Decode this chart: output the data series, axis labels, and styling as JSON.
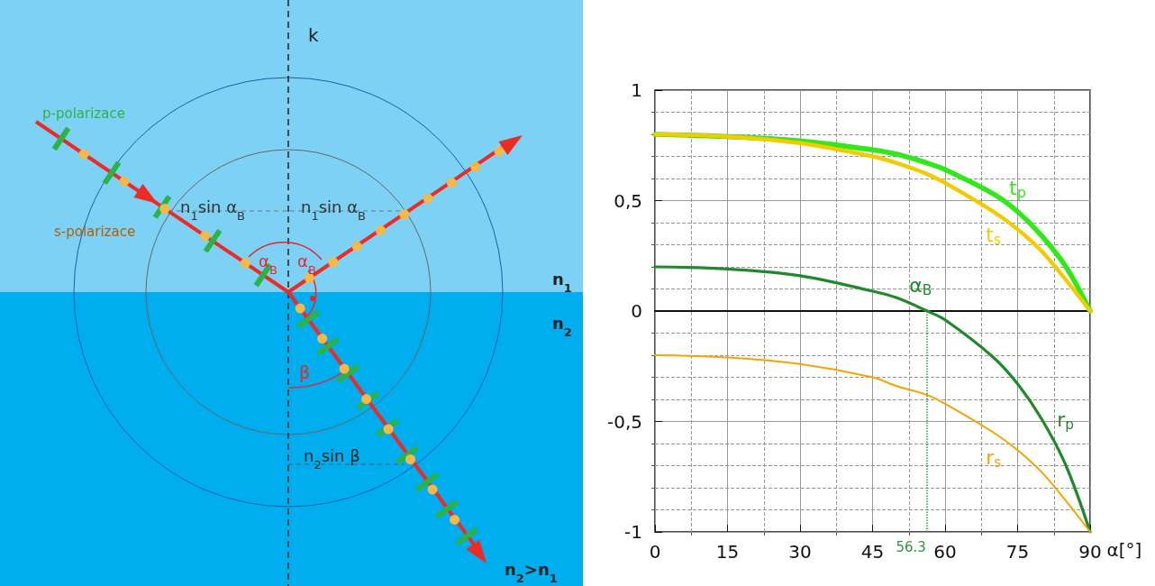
{
  "chart_data": [
    {
      "type": "other",
      "annotations": [
        "k",
        "p-polarizace",
        "s-polarizace",
        "n$_{1}$sin α$_{B}$",
        "n$_{1}$sin α$_{B}$",
        "α$_{B}$",
        "α$_{B}$",
        "β",
        "n$_{2}$sin β",
        "n$_{1}$",
        "n$_{2}$",
        "n$_{2}$>n$_{1}$"
      ]
    },
    {
      "type": "line",
      "xlabel": "α[°]",
      "x": [
        0,
        15,
        30,
        45,
        50,
        56.3,
        60,
        70,
        75,
        80,
        85,
        90
      ],
      "series": [
        {
          "name": "t$_{p}$",
          "color": "#33e81a",
          "values": [
            0.8,
            0.79,
            0.77,
            0.73,
            0.71,
            0.67,
            0.64,
            0.53,
            0.45,
            0.34,
            0.2,
            0
          ]
        },
        {
          "name": "t$_{s}$",
          "color": "#f2cc00",
          "values": [
            0.8,
            0.79,
            0.76,
            0.7,
            0.67,
            0.62,
            0.58,
            0.45,
            0.37,
            0.27,
            0.14,
            0
          ]
        },
        {
          "name": "r$_{p}$",
          "color": "#1e8a2a",
          "values": [
            0.2,
            0.19,
            0.16,
            0.09,
            0.06,
            0,
            -0.04,
            -0.21,
            -0.33,
            -0.49,
            -0.7,
            -1
          ]
        },
        {
          "name": "r$_{s}$",
          "color": "#f5a400",
          "values": [
            -0.2,
            -0.21,
            -0.24,
            -0.3,
            -0.34,
            -0.38,
            -0.42,
            -0.55,
            -0.63,
            -0.73,
            -0.86,
            -1
          ]
        }
      ],
      "xlim": [
        0,
        90
      ],
      "xticks": [
        0,
        15,
        30,
        45,
        60,
        75,
        90
      ],
      "ylim": [
        -1,
        1
      ],
      "yticks": [
        -1,
        {
          "value": -0.5,
          "label": "-0,5"
        },
        0,
        {
          "value": 0.5,
          "label": "0,5"
        },
        1
      ],
      "ref_lines": [
        {
          "axis": "x",
          "value": 56.3,
          "label": "56.3",
          "color": "#2e9a3a",
          "line_style": "dotted"
        }
      ],
      "annotations": [
        {
          "text": "α$_{B}$",
          "x": 56.3,
          "y": 0
        }
      ],
      "grid": true,
      "legend": false,
      "marker": "none",
      "line_style": "solid"
    }
  ]
}
